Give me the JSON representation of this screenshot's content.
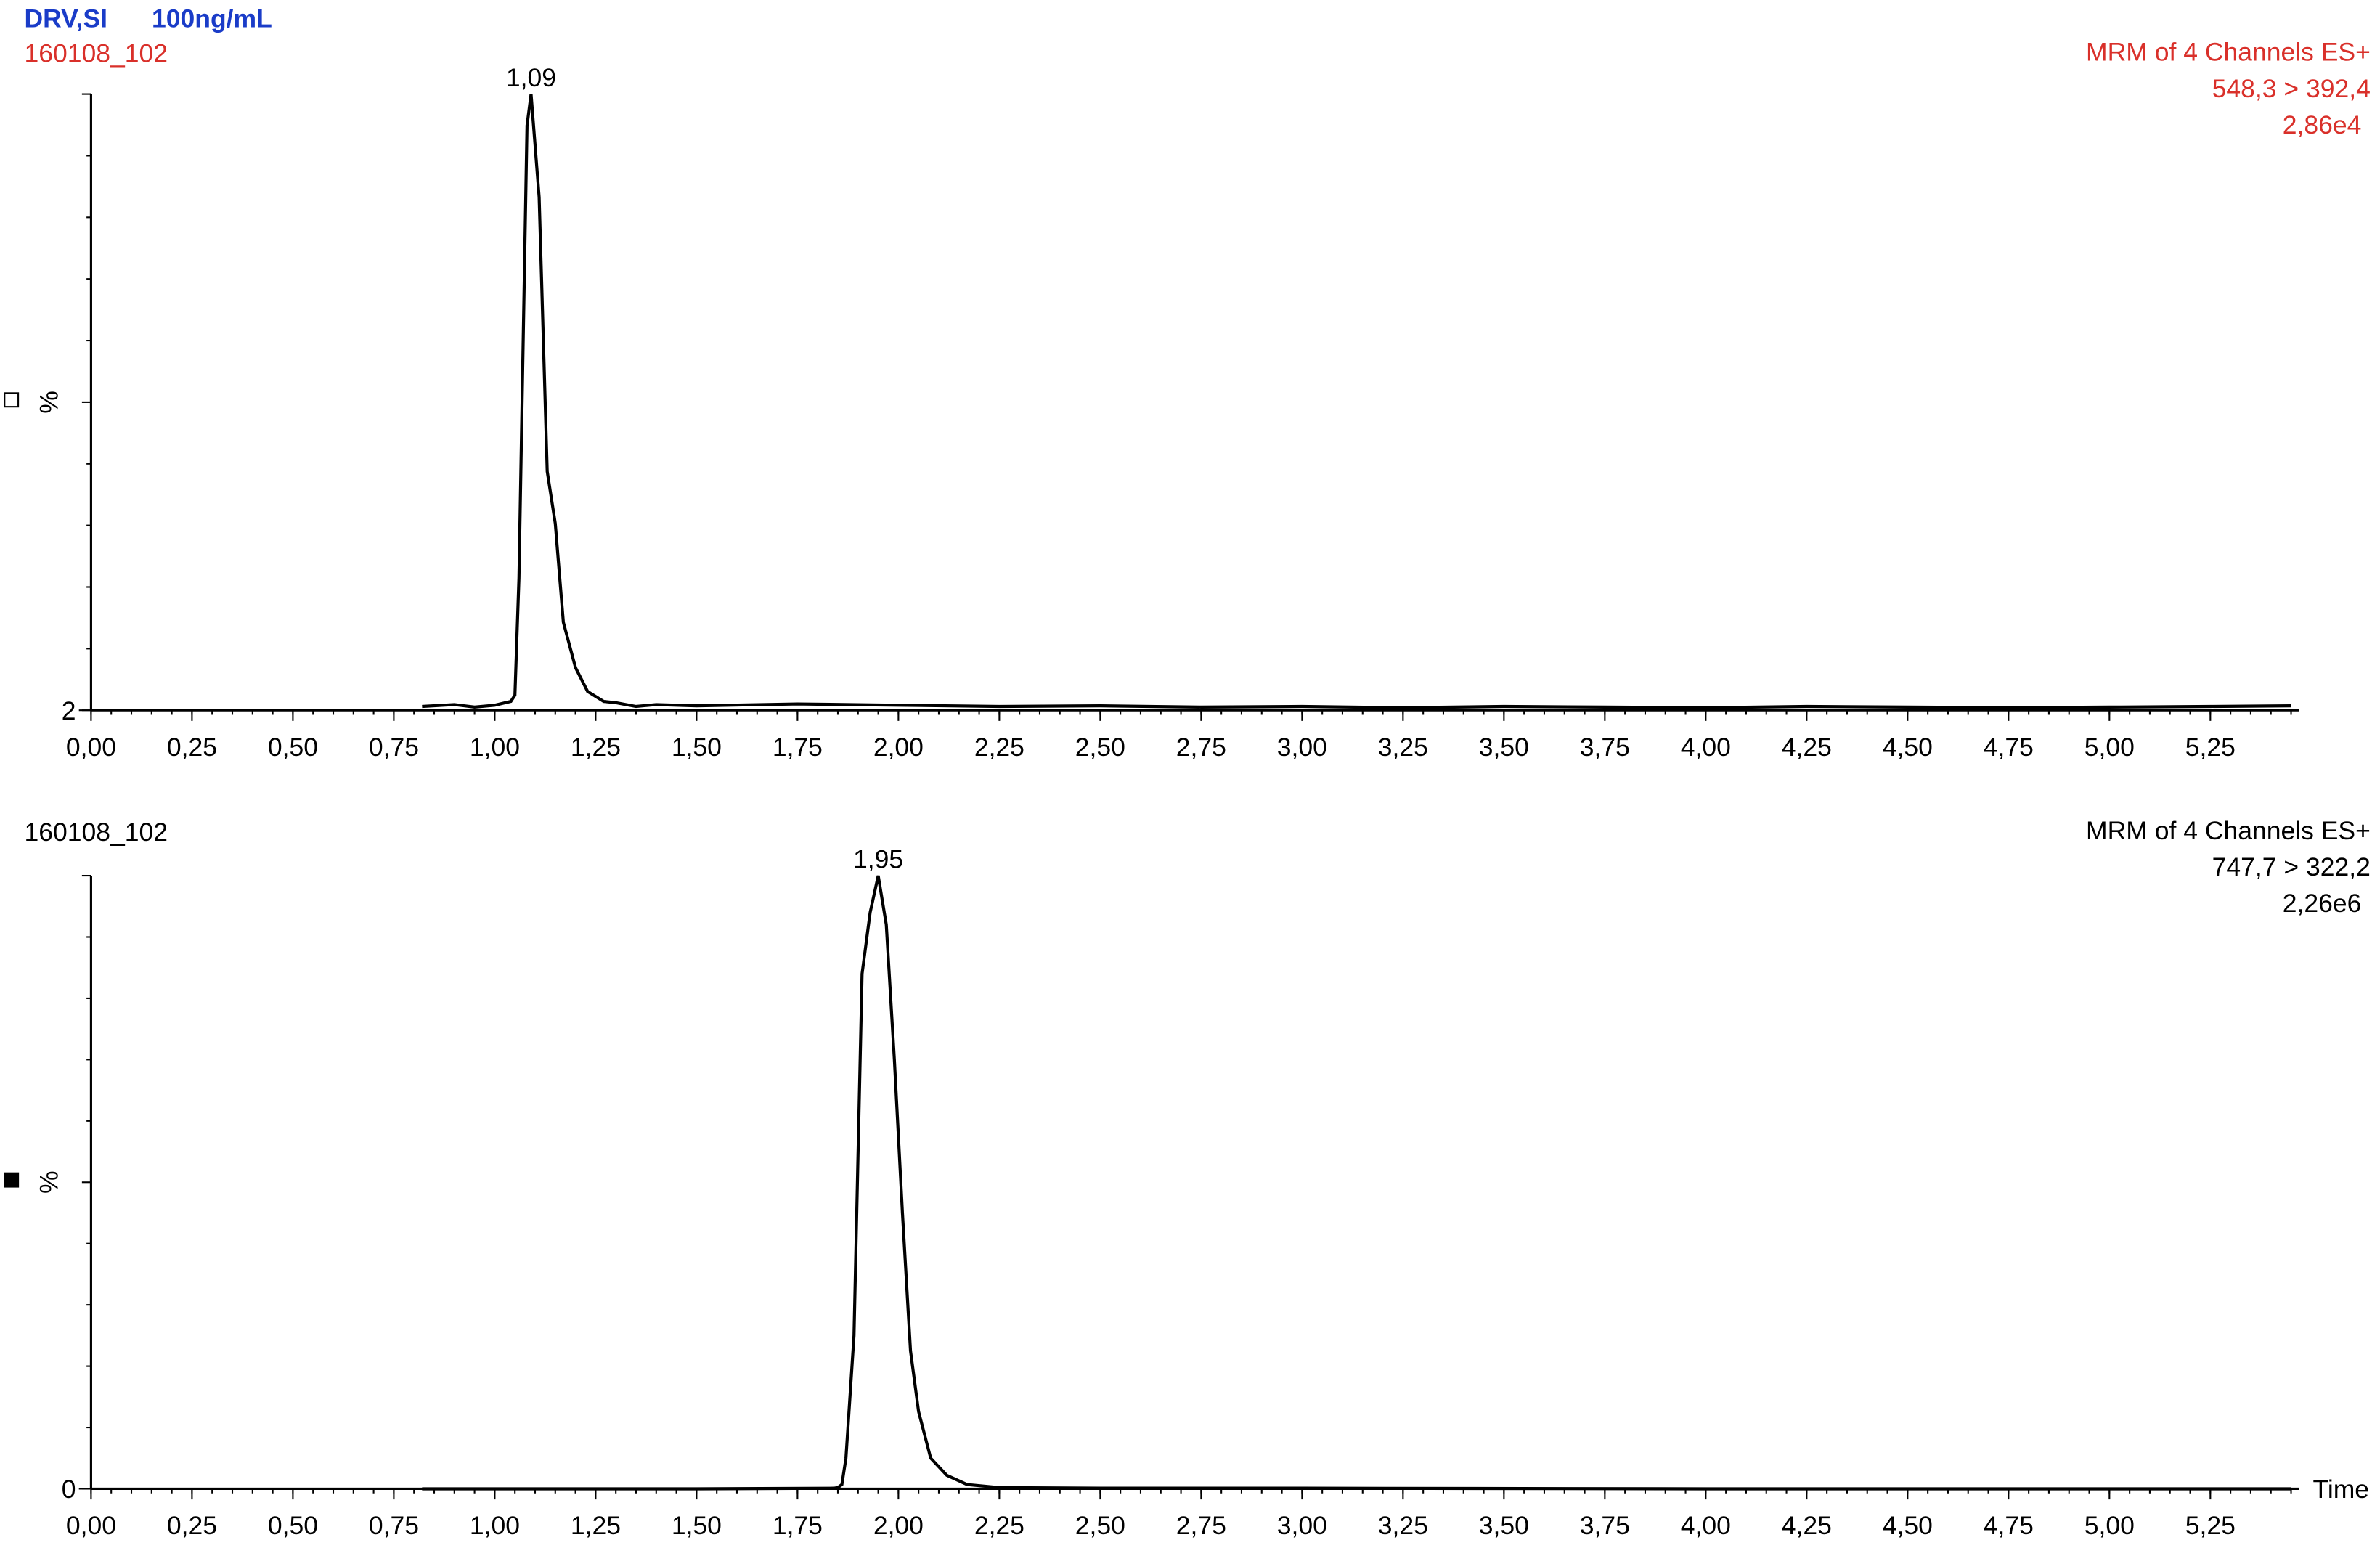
{
  "chart_data": [
    {
      "type": "line",
      "title": "DRV,SI",
      "subtitle": "100ng/mL",
      "title_color": "#1a3cc8",
      "sample": "160108_102",
      "info": [
        "MRM of 4 Channels ES+",
        "548,3 > 392,4",
        "2,86e4"
      ],
      "info_color": "#d9302a",
      "y_label": "%",
      "color": "#000000",
      "x": [
        0.82,
        0.9,
        0.95,
        1.0,
        1.04,
        1.05,
        1.06,
        1.08,
        1.09,
        1.11,
        1.13,
        1.15,
        1.17,
        1.2,
        1.23,
        1.27,
        1.3,
        1.35,
        1.4,
        1.5,
        1.75,
        2.0,
        2.25,
        2.5,
        2.75,
        3.0,
        3.25,
        3.5,
        3.75,
        4.0,
        4.25,
        4.5,
        4.75,
        5.0,
        5.25,
        5.45
      ],
      "values": [
        2.6,
        2.9,
        2.5,
        2.8,
        3.4,
        4.4,
        23,
        95,
        100,
        83.6,
        40,
        31.7,
        16,
        8.8,
        5,
        3.4,
        3.2,
        2.6,
        2.9,
        2.7,
        3.0,
        2.8,
        2.6,
        2.7,
        2.5,
        2.6,
        2.4,
        2.6,
        2.5,
        2.4,
        2.6,
        2.5,
        2.4,
        2.5,
        2.6,
        2.7
      ],
      "annotations": [
        {
          "x": 1.09,
          "label": "1,09"
        }
      ],
      "xlim": [
        0,
        5.47
      ],
      "ylim": [
        2,
        100
      ],
      "xticks": [
        {
          "value": 0,
          "label": "0,00"
        },
        {
          "value": 0.25,
          "label": "0,25"
        },
        {
          "value": 0.5,
          "label": "0,50"
        },
        {
          "value": 0.75,
          "label": "0,75"
        },
        {
          "value": 1,
          "label": "1,00"
        },
        {
          "value": 1.25,
          "label": "1,25"
        },
        {
          "value": 1.5,
          "label": "1,50"
        },
        {
          "value": 1.75,
          "label": "1,75"
        },
        {
          "value": 2,
          "label": "2,00"
        },
        {
          "value": 2.25,
          "label": "2,25"
        },
        {
          "value": 2.5,
          "label": "2,50"
        },
        {
          "value": 2.75,
          "label": "2,75"
        },
        {
          "value": 3,
          "label": "3,00"
        },
        {
          "value": 3.25,
          "label": "3,25"
        },
        {
          "value": 3.5,
          "label": "3,50"
        },
        {
          "value": 3.75,
          "label": "3,75"
        },
        {
          "value": 4,
          "label": "4,00"
        },
        {
          "value": 4.25,
          "label": "4,25"
        },
        {
          "value": 4.5,
          "label": "4,50"
        },
        {
          "value": 4.75,
          "label": "4,75"
        },
        {
          "value": 5,
          "label": "5,00"
        },
        {
          "value": 5.25,
          "label": "5,25"
        }
      ],
      "yticks": [
        2
      ]
    },
    {
      "type": "line",
      "sample": "160108_102",
      "info": [
        "MRM of 4 Channels ES+",
        "747,7 > 322,2",
        "2,26e6"
      ],
      "info_color": "#000000",
      "y_label": "%",
      "x_label": "Time",
      "color": "#000000",
      "x": [
        0.82,
        1.5,
        1.84,
        1.85,
        1.86,
        1.87,
        1.89,
        1.91,
        1.93,
        1.95,
        1.97,
        1.99,
        2.01,
        2.03,
        2.05,
        2.08,
        2.12,
        2.17,
        2.25,
        2.5,
        3.0,
        4.0,
        5.0,
        5.45
      ],
      "values": [
        0,
        0,
        0.1,
        0.2,
        0.7,
        5,
        25,
        84,
        94,
        100,
        92,
        70,
        45,
        22.5,
        12.6,
        5,
        2.2,
        0.7,
        0.2,
        0.1,
        0.1,
        0,
        0,
        0
      ],
      "annotations": [
        {
          "x": 1.95,
          "label": "1,95"
        }
      ],
      "xlim": [
        0,
        5.47
      ],
      "ylim": [
        0,
        100
      ],
      "xticks": [
        {
          "value": 0,
          "label": "0,00"
        },
        {
          "value": 0.25,
          "label": "0,25"
        },
        {
          "value": 0.5,
          "label": "0,50"
        },
        {
          "value": 0.75,
          "label": "0,75"
        },
        {
          "value": 1,
          "label": "1,00"
        },
        {
          "value": 1.25,
          "label": "1,25"
        },
        {
          "value": 1.5,
          "label": "1,50"
        },
        {
          "value": 1.75,
          "label": "1,75"
        },
        {
          "value": 2,
          "label": "2,00"
        },
        {
          "value": 2.25,
          "label": "2,25"
        },
        {
          "value": 2.5,
          "label": "2,50"
        },
        {
          "value": 2.75,
          "label": "2,75"
        },
        {
          "value": 3,
          "label": "3,00"
        },
        {
          "value": 3.25,
          "label": "3,25"
        },
        {
          "value": 3.5,
          "label": "3,50"
        },
        {
          "value": 3.75,
          "label": "3,75"
        },
        {
          "value": 4,
          "label": "4,00"
        },
        {
          "value": 4.25,
          "label": "4,25"
        },
        {
          "value": 4.5,
          "label": "4,50"
        },
        {
          "value": 4.75,
          "label": "4,75"
        },
        {
          "value": 5,
          "label": "5,00"
        },
        {
          "value": 5.25,
          "label": "5,25"
        }
      ],
      "yticks": [
        0
      ]
    }
  ]
}
